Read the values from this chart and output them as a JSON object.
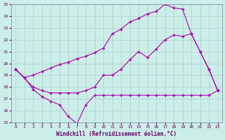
{
  "xlabel": "Windchill (Refroidissement éolien,°C)",
  "bg_color": "#cceee8",
  "grid_color": "#aacccc",
  "line_color": "#aa00aa",
  "xlim": [
    -0.5,
    23.5
  ],
  "ylim": [
    15,
    25
  ],
  "xticks": [
    0,
    1,
    2,
    3,
    4,
    5,
    6,
    7,
    8,
    9,
    10,
    11,
    12,
    13,
    14,
    15,
    16,
    17,
    18,
    19,
    20,
    21,
    22,
    23
  ],
  "yticks": [
    15,
    16,
    17,
    18,
    19,
    20,
    21,
    22,
    23,
    24,
    25
  ],
  "line1_x": [
    0,
    1,
    2,
    3,
    4,
    5,
    6,
    7,
    8,
    9,
    10,
    11,
    12,
    13,
    14,
    15,
    16,
    17,
    18,
    19,
    20,
    21,
    22,
    23
  ],
  "line1_y": [
    19.5,
    18.8,
    19.0,
    19.3,
    19.6,
    19.9,
    20.1,
    20.4,
    20.6,
    20.9,
    21.3,
    22.5,
    22.9,
    23.5,
    23.8,
    24.2,
    24.4,
    25.0,
    24.7,
    24.6,
    22.5,
    21.0,
    19.5,
    17.7
  ],
  "line2_x": [
    0,
    2,
    3,
    4,
    5,
    6,
    7,
    8,
    9,
    10,
    11,
    12,
    13,
    14,
    15,
    16,
    17,
    18,
    19,
    20,
    21,
    22,
    23
  ],
  "line2_y": [
    19.5,
    18.0,
    17.7,
    17.5,
    17.5,
    17.5,
    17.5,
    17.7,
    18.0,
    19.0,
    19.0,
    19.5,
    20.3,
    21.0,
    20.5,
    21.2,
    22.0,
    22.4,
    22.3,
    22.5,
    21.0,
    19.5,
    17.7
  ],
  "line3_x": [
    0,
    1,
    2,
    3,
    4,
    5,
    6,
    7,
    8,
    9,
    10,
    11,
    12,
    13,
    14,
    15,
    16,
    17,
    18,
    19,
    20,
    21,
    22,
    23
  ],
  "line3_y": [
    19.5,
    18.8,
    17.8,
    17.2,
    16.8,
    16.5,
    15.5,
    14.9,
    16.5,
    17.3,
    17.3,
    17.3,
    17.3,
    17.3,
    17.3,
    17.3,
    17.3,
    17.3,
    17.3,
    17.3,
    17.3,
    17.3,
    17.3,
    17.7
  ]
}
